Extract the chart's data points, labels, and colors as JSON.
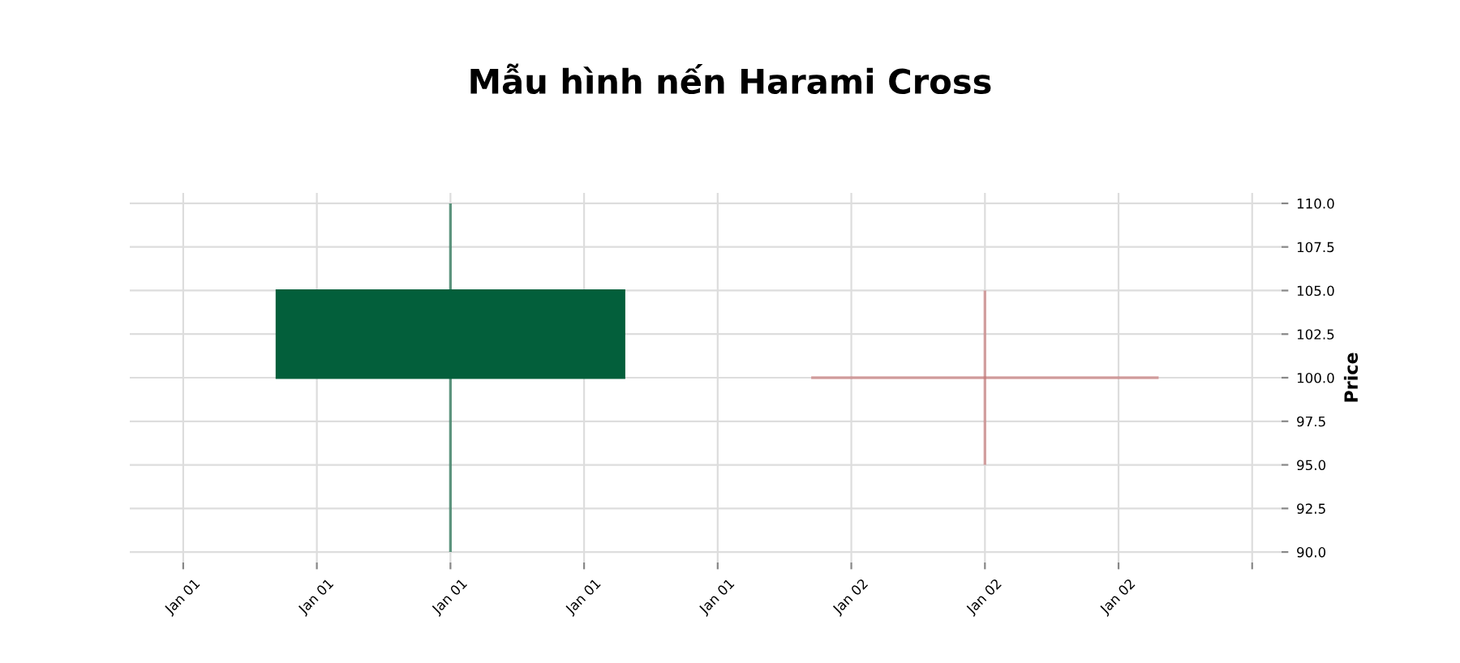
{
  "chart_data": {
    "type": "candlestick",
    "title": "Mẫu hình nến Harami Cross",
    "ylabel": "Price",
    "categories": [
      "Jan 01",
      "Jan 01",
      "Jan 01",
      "Jan 01",
      "Jan 01",
      "Jan 02",
      "Jan 02",
      "Jan 02",
      null
    ],
    "ohlc": [
      null,
      null,
      [
        100,
        110,
        90,
        105
      ],
      null,
      null,
      null,
      [
        100,
        105,
        95,
        100
      ],
      null,
      null
    ],
    "colors": [
      null,
      null,
      "#035f3b",
      null,
      null,
      null,
      "#c46f6f",
      null,
      null
    ],
    "ylim": [
      89.4,
      110.6
    ],
    "yticks": [
      {
        "value": 90,
        "label": "90.0"
      },
      {
        "value": 92.5,
        "label": "92.5"
      },
      {
        "value": 95,
        "label": "95.0"
      },
      {
        "value": 97.5,
        "label": "97.5"
      },
      {
        "value": 100,
        "label": "100.0"
      },
      {
        "value": 102.5,
        "label": "102.5"
      },
      {
        "value": 105,
        "label": "105.0"
      },
      {
        "value": 107.5,
        "label": "107.5"
      },
      {
        "value": 110,
        "label": "110.0"
      }
    ],
    "grid": true
  }
}
